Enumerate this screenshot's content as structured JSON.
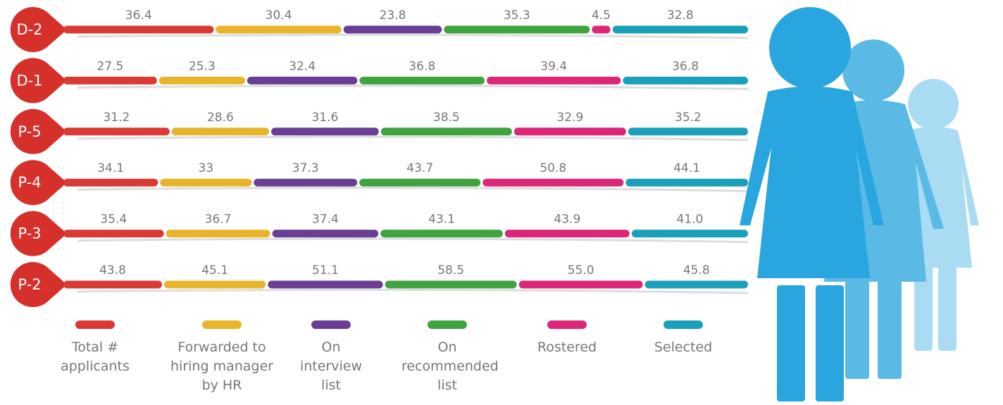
{
  "chart_data": {
    "type": "bar",
    "categories": [
      "D-2",
      "D-1",
      "P-5",
      "P-4",
      "P-3",
      "P-2"
    ],
    "series": [
      {
        "name": "Total # applicants",
        "color": "#d93a35",
        "values": [
          36.4,
          27.5,
          31.2,
          34.1,
          35.4,
          43.8
        ]
      },
      {
        "name": "Forwarded to hiring manager by HR",
        "color": "#e8b52a",
        "values": [
          30.4,
          25.3,
          28.6,
          33,
          36.7,
          45.1
        ]
      },
      {
        "name": "On interview list",
        "color": "#6b3e96",
        "values": [
          23.8,
          32.4,
          31.6,
          37.3,
          37.4,
          51.1
        ]
      },
      {
        "name": "On recommended list",
        "color": "#3fa33f",
        "values": [
          35.3,
          36.8,
          38.5,
          43.7,
          43.1,
          58.5
        ]
      },
      {
        "name": "Rostered",
        "color": "#dc2779",
        "values": [
          4.5,
          39.4,
          32.9,
          50.8,
          43.9,
          55.0
        ],
        "value_labels": [
          "4.5",
          "39.4",
          "32.9",
          "50.8",
          "43.9",
          "55.0"
        ]
      },
      {
        "name": "Selected",
        "color": "#1aa0bb",
        "values": [
          32.8,
          36.8,
          35.2,
          44.1,
          41.0,
          45.8
        ],
        "value_labels": [
          "32.8",
          "36.8",
          "35.2",
          "44.1",
          "41.0",
          "45.8"
        ]
      }
    ]
  }
}
